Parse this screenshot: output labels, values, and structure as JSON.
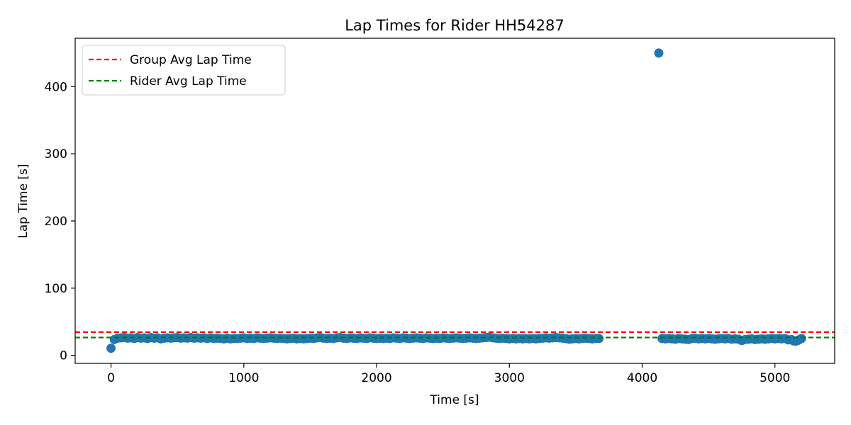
{
  "chart_data": {
    "type": "scatter",
    "title": "Lap Times for Rider HH54287",
    "xlabel": "Time [s]",
    "ylabel": "Lap Time [s]",
    "xlim": [
      -270,
      5450
    ],
    "ylim": [
      -12,
      472
    ],
    "xticks": [
      0,
      1000,
      2000,
      3000,
      4000,
      5000
    ],
    "yticks": [
      0,
      100,
      200,
      300,
      400
    ],
    "grid": false,
    "legend_position": "upper-left",
    "point_color": "#1f77b4",
    "hlines": [
      {
        "name": "Group Avg Lap Time",
        "y": 34.5,
        "color": "#ff0000",
        "style": "dashed"
      },
      {
        "name": "Rider Avg Lap Time",
        "y": 26.5,
        "color": "#008000",
        "style": "dashed"
      }
    ],
    "series": [
      {
        "points": [
          [
            0,
            10.5
          ],
          [
            25,
            23.5
          ],
          [
            50,
            25.5
          ],
          [
            75,
            26
          ],
          [
            100,
            26.5
          ],
          [
            125,
            25.5
          ],
          [
            150,
            26
          ],
          [
            175,
            25
          ],
          [
            200,
            26.5
          ],
          [
            225,
            25.5
          ],
          [
            250,
            26
          ],
          [
            275,
            25
          ],
          [
            300,
            26.5
          ],
          [
            325,
            25.5
          ],
          [
            350,
            26
          ],
          [
            375,
            24.5
          ],
          [
            400,
            25.5
          ],
          [
            425,
            26
          ],
          [
            450,
            25.5
          ],
          [
            475,
            26
          ],
          [
            500,
            26.5
          ],
          [
            525,
            25.5
          ],
          [
            550,
            26
          ],
          [
            575,
            25.5
          ],
          [
            600,
            26.5
          ],
          [
            625,
            25.5
          ],
          [
            650,
            26
          ],
          [
            675,
            25.5
          ],
          [
            700,
            26
          ],
          [
            725,
            25
          ],
          [
            750,
            26
          ],
          [
            775,
            25
          ],
          [
            800,
            25.5
          ],
          [
            825,
            25
          ],
          [
            850,
            24.5
          ],
          [
            875,
            25.5
          ],
          [
            900,
            24.5
          ],
          [
            925,
            25
          ],
          [
            950,
            25
          ],
          [
            975,
            25.5
          ],
          [
            1000,
            26
          ],
          [
            1025,
            25
          ],
          [
            1050,
            25.5
          ],
          [
            1075,
            25
          ],
          [
            1100,
            26
          ],
          [
            1125,
            25.5
          ],
          [
            1150,
            25
          ],
          [
            1175,
            25.5
          ],
          [
            1200,
            26
          ],
          [
            1225,
            25.5
          ],
          [
            1250,
            25
          ],
          [
            1275,
            25.5
          ],
          [
            1300,
            25
          ],
          [
            1325,
            24.5
          ],
          [
            1350,
            25
          ],
          [
            1375,
            25.5
          ],
          [
            1400,
            24.5
          ],
          [
            1425,
            25
          ],
          [
            1450,
            24.5
          ],
          [
            1475,
            25
          ],
          [
            1500,
            25.5
          ],
          [
            1525,
            25
          ],
          [
            1550,
            26
          ],
          [
            1575,
            26.5
          ],
          [
            1600,
            25.5
          ],
          [
            1625,
            25
          ],
          [
            1650,
            25.5
          ],
          [
            1675,
            25
          ],
          [
            1700,
            26
          ],
          [
            1725,
            26.5
          ],
          [
            1750,
            25.5
          ],
          [
            1775,
            25
          ],
          [
            1800,
            26
          ],
          [
            1825,
            25.5
          ],
          [
            1850,
            25
          ],
          [
            1875,
            26
          ],
          [
            1900,
            25.5
          ],
          [
            1925,
            25
          ],
          [
            1950,
            26
          ],
          [
            1975,
            25.5
          ],
          [
            2000,
            25
          ],
          [
            2025,
            25.5
          ],
          [
            2050,
            25
          ],
          [
            2075,
            25.5
          ],
          [
            2100,
            25
          ],
          [
            2125,
            26
          ],
          [
            2150,
            25.5
          ],
          [
            2175,
            25
          ],
          [
            2200,
            26
          ],
          [
            2225,
            25.5
          ],
          [
            2250,
            25
          ],
          [
            2275,
            25.5
          ],
          [
            2300,
            26
          ],
          [
            2325,
            25.5
          ],
          [
            2350,
            25
          ],
          [
            2375,
            26
          ],
          [
            2400,
            25.5
          ],
          [
            2425,
            25
          ],
          [
            2450,
            25.5
          ],
          [
            2475,
            25
          ],
          [
            2500,
            26
          ],
          [
            2525,
            25.5
          ],
          [
            2550,
            25
          ],
          [
            2575,
            25.5
          ],
          [
            2600,
            26
          ],
          [
            2625,
            25.5
          ],
          [
            2650,
            25
          ],
          [
            2675,
            25.5
          ],
          [
            2700,
            26
          ],
          [
            2725,
            25.5
          ],
          [
            2750,
            25
          ],
          [
            2775,
            25.5
          ],
          [
            2800,
            26
          ],
          [
            2825,
            26.5
          ],
          [
            2850,
            27
          ],
          [
            2875,
            26
          ],
          [
            2900,
            25.5
          ],
          [
            2925,
            25
          ],
          [
            2950,
            25.5
          ],
          [
            2975,
            25
          ],
          [
            3000,
            24.5
          ],
          [
            3025,
            25
          ],
          [
            3050,
            24.5
          ],
          [
            3075,
            25
          ],
          [
            3100,
            24.5
          ],
          [
            3125,
            25
          ],
          [
            3150,
            24.5
          ],
          [
            3175,
            25
          ],
          [
            3200,
            24.5
          ],
          [
            3225,
            25
          ],
          [
            3250,
            25.5
          ],
          [
            3275,
            26
          ],
          [
            3300,
            25.5
          ],
          [
            3325,
            26
          ],
          [
            3350,
            26.5
          ],
          [
            3375,
            26
          ],
          [
            3400,
            25.5
          ],
          [
            3425,
            25
          ],
          [
            3450,
            24
          ],
          [
            3475,
            24.5
          ],
          [
            3500,
            25
          ],
          [
            3525,
            24.5
          ],
          [
            3550,
            25
          ],
          [
            3575,
            25.5
          ],
          [
            3600,
            25
          ],
          [
            3625,
            24.5
          ],
          [
            3650,
            25
          ],
          [
            3675,
            25
          ],
          [
            4125,
            450
          ],
          [
            4150,
            25
          ],
          [
            4175,
            24.5
          ],
          [
            4200,
            25
          ],
          [
            4225,
            24.5
          ],
          [
            4250,
            24
          ],
          [
            4275,
            25
          ],
          [
            4300,
            24.5
          ],
          [
            4325,
            24
          ],
          [
            4350,
            23.5
          ],
          [
            4375,
            25
          ],
          [
            4400,
            25.5
          ],
          [
            4425,
            24.5
          ],
          [
            4450,
            25
          ],
          [
            4475,
            24.5
          ],
          [
            4500,
            25
          ],
          [
            4525,
            24.5
          ],
          [
            4550,
            24
          ],
          [
            4575,
            24.5
          ],
          [
            4600,
            25
          ],
          [
            4625,
            24.5
          ],
          [
            4650,
            25
          ],
          [
            4675,
            24
          ],
          [
            4700,
            24.5
          ],
          [
            4725,
            24
          ],
          [
            4750,
            22
          ],
          [
            4775,
            23.5
          ],
          [
            4800,
            24
          ],
          [
            4825,
            24.5
          ],
          [
            4850,
            23.5
          ],
          [
            4875,
            24
          ],
          [
            4900,
            24.5
          ],
          [
            4925,
            24
          ],
          [
            4950,
            24.5
          ],
          [
            4975,
            25
          ],
          [
            5000,
            24.5
          ],
          [
            5025,
            25
          ],
          [
            5050,
            24.5
          ],
          [
            5075,
            25
          ],
          [
            5100,
            23
          ],
          [
            5125,
            23.5
          ],
          [
            5140,
            21.5
          ],
          [
            5155,
            21
          ],
          [
            5170,
            22
          ],
          [
            5185,
            23.5
          ],
          [
            5200,
            25
          ]
        ]
      }
    ]
  }
}
